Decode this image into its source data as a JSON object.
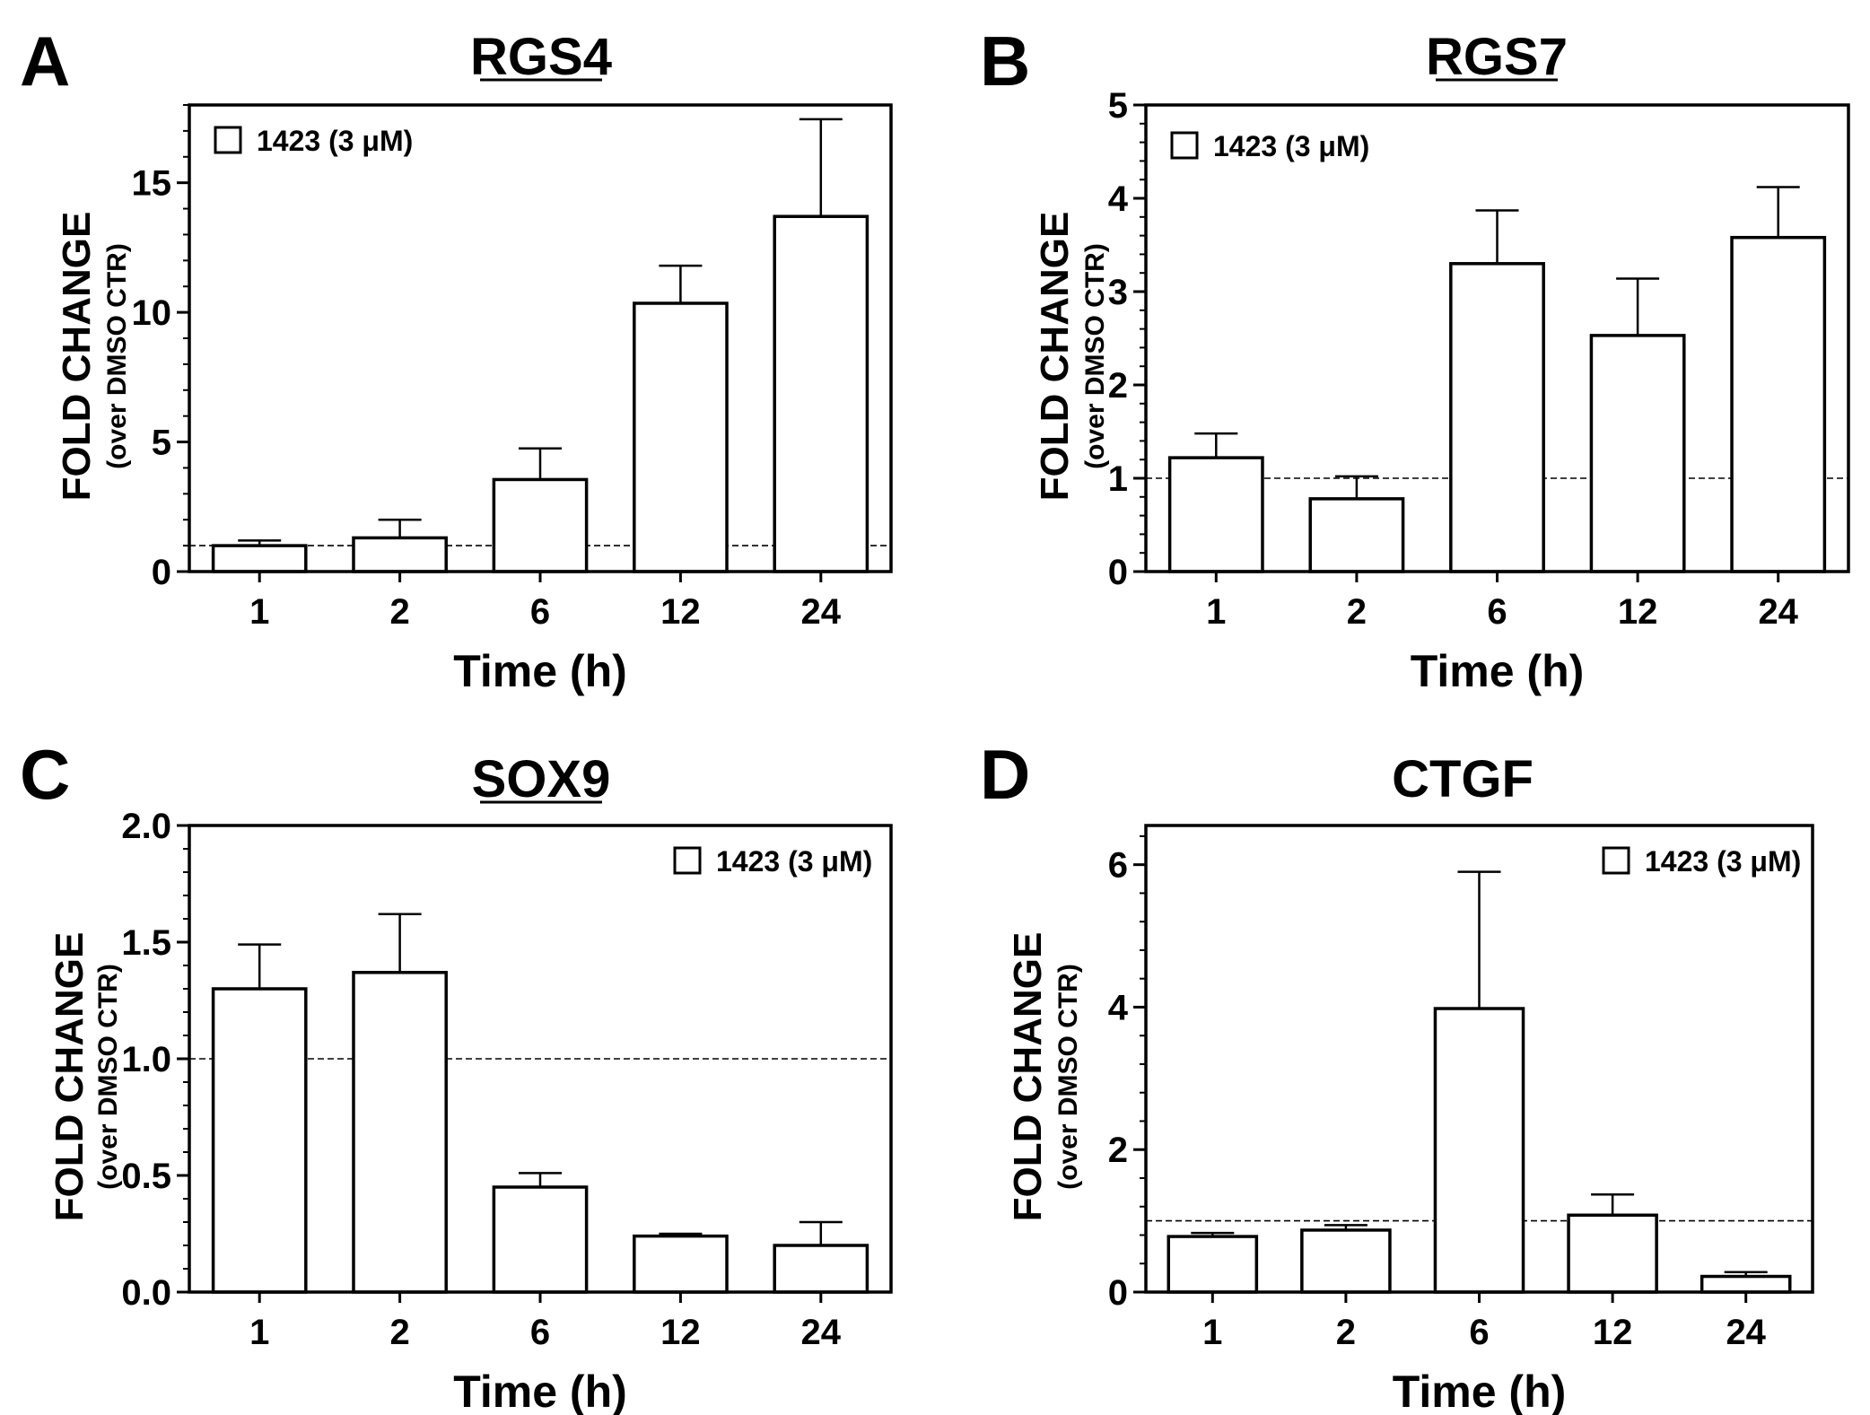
{
  "chart_data": [
    {
      "panel_label": "A",
      "title": "RGS4",
      "title_underlined": true,
      "type": "bar",
      "categories": [
        "1",
        "2",
        "6",
        "12",
        "24"
      ],
      "values": [
        1.0,
        1.3,
        3.55,
        10.35,
        13.7
      ],
      "errors_upper": [
        1.2,
        2.0,
        4.75,
        11.8,
        17.45
      ],
      "reference_line": 1,
      "xlabel": "Time (h)",
      "ylabel": "FOLD CHANGE",
      "ylabel_sub": "(over DMSO CTR)",
      "ylim": [
        0,
        18
      ],
      "yticks": [
        0,
        5,
        10,
        15
      ],
      "ytick_labels": [
        "0",
        "5",
        "10",
        "15"
      ],
      "legend": "1423 (3 μM)",
      "legend_position": "top-left"
    },
    {
      "panel_label": "B",
      "title": "RGS7",
      "title_underlined": true,
      "type": "bar",
      "categories": [
        "1",
        "2",
        "6",
        "12",
        "24"
      ],
      "values": [
        1.22,
        0.78,
        3.3,
        2.53,
        3.58
      ],
      "errors_upper": [
        1.48,
        1.02,
        3.87,
        3.14,
        4.12
      ],
      "reference_line": 1,
      "xlabel": "Time (h)",
      "ylabel": "FOLD CHANGE",
      "ylabel_sub": "(over DMSO CTR)",
      "ylim": [
        0,
        5
      ],
      "yticks": [
        0,
        1,
        2,
        3,
        4,
        5
      ],
      "ytick_labels": [
        "0",
        "1",
        "2",
        "3",
        "4",
        "5"
      ],
      "legend": "1423 (3 μM)",
      "legend_position": "top-left"
    },
    {
      "panel_label": "C",
      "title": "SOX9",
      "title_underlined": true,
      "type": "bar",
      "categories": [
        "1",
        "2",
        "6",
        "12",
        "24"
      ],
      "values": [
        1.3,
        1.37,
        0.45,
        0.24,
        0.2
      ],
      "errors_upper": [
        1.49,
        1.62,
        0.51,
        0.25,
        0.3
      ],
      "reference_line": 1,
      "xlabel": "Time (h)",
      "ylabel": "FOLD CHANGE",
      "ylabel_sub": "(over DMSO CTR)",
      "ylim": [
        0,
        2
      ],
      "yticks": [
        0,
        0.5,
        1,
        1.5,
        2
      ],
      "ytick_labels": [
        "0.0",
        "0.5",
        "1.0",
        "1.5",
        "2.0"
      ],
      "legend": "1423 (3 μM)",
      "legend_position": "top-right"
    },
    {
      "panel_label": "D",
      "title": "CTGF",
      "title_underlined": false,
      "type": "bar",
      "categories": [
        "1",
        "2",
        "6",
        "12",
        "24"
      ],
      "values": [
        0.78,
        0.87,
        3.98,
        1.08,
        0.22
      ],
      "errors_upper": [
        0.83,
        0.94,
        5.9,
        1.37,
        0.28
      ],
      "reference_line": 1,
      "xlabel": "Time (h)",
      "ylabel": "FOLD CHANGE",
      "ylabel_sub": "(over DMSO CTR)",
      "ylim": [
        0,
        6.55
      ],
      "yticks": [
        0,
        2,
        4,
        6
      ],
      "ytick_labels": [
        "0",
        "2",
        "4",
        "6"
      ],
      "legend": "1423 (3 μM)",
      "legend_position": "top-right"
    }
  ]
}
